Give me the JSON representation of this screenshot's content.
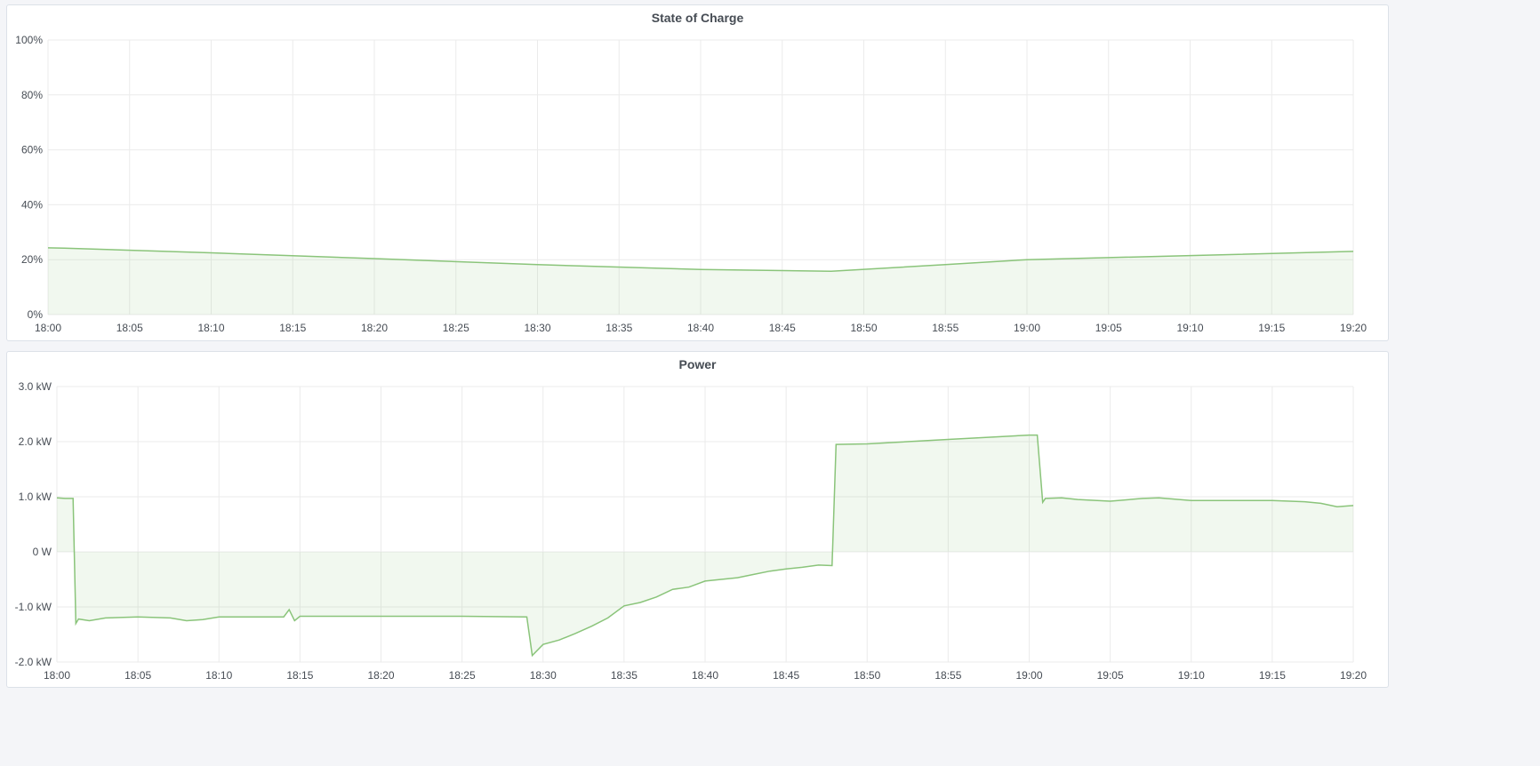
{
  "chart_data": [
    {
      "type": "area",
      "title": "State of Charge",
      "x_ticks": [
        "18:00",
        "18:05",
        "18:10",
        "18:15",
        "18:20",
        "18:25",
        "18:30",
        "18:35",
        "18:40",
        "18:45",
        "18:50",
        "18:55",
        "19:00",
        "19:05",
        "19:10",
        "19:15",
        "19:20"
      ],
      "y_ticks": [
        "0%",
        "20%",
        "40%",
        "60%",
        "80%",
        "100%"
      ],
      "ylim": [
        0,
        100
      ],
      "xlim": [
        "18:00",
        "19:20"
      ],
      "grid": true,
      "color": "#8ac47a",
      "series": [
        {
          "x": [
            "18:00",
            "18:01",
            "18:10",
            "18:20",
            "18:30",
            "18:40",
            "18:48",
            "18:55",
            "19:00",
            "19:10",
            "19:20"
          ],
          "values": [
            24.3,
            24.2,
            22.5,
            20.4,
            18.2,
            16.4,
            15.8,
            18.2,
            20.0,
            21.5,
            23.0
          ]
        }
      ]
    },
    {
      "type": "area",
      "title": "Power",
      "x_ticks": [
        "18:00",
        "18:05",
        "18:10",
        "18:15",
        "18:20",
        "18:25",
        "18:30",
        "18:35",
        "18:40",
        "18:45",
        "18:50",
        "18:55",
        "19:00",
        "19:05",
        "19:10",
        "19:15",
        "19:20"
      ],
      "y_ticks": [
        "-2.0 kW",
        "-1.0 kW",
        "0 W",
        "1.0 kW",
        "2.0 kW",
        "3.0 kW"
      ],
      "ylim": [
        -2.0,
        3.0
      ],
      "yunit": "kW",
      "xlim": [
        "18:00",
        "19:20"
      ],
      "grid": true,
      "color": "#8ac47a",
      "series": [
        {
          "x": [
            "18:00",
            "18:00:30",
            "18:01",
            "18:01:10",
            "18:01:20",
            "18:02",
            "18:03",
            "18:05",
            "18:07",
            "18:08",
            "18:09",
            "18:10",
            "18:12",
            "18:14",
            "18:14:20",
            "18:14:40",
            "18:15",
            "18:20",
            "18:25",
            "18:29",
            "18:29:20",
            "18:30",
            "18:31",
            "18:32",
            "18:33",
            "18:34",
            "18:35",
            "18:36",
            "18:37",
            "18:38",
            "18:39",
            "18:40",
            "18:41",
            "18:42",
            "18:43",
            "18:44",
            "18:45",
            "18:46",
            "18:47",
            "18:47:50",
            "18:48:05",
            "18:50",
            "18:55",
            "19:00",
            "19:00:30",
            "19:00:50",
            "19:01",
            "19:02",
            "19:03",
            "19:05",
            "19:07",
            "19:08",
            "19:10",
            "19:12",
            "19:15",
            "19:17",
            "19:18",
            "19:19",
            "19:20"
          ],
          "values": [
            0.98,
            0.97,
            0.97,
            -1.3,
            -1.22,
            -1.25,
            -1.2,
            -1.18,
            -1.2,
            -1.25,
            -1.23,
            -1.18,
            -1.18,
            -1.18,
            -1.05,
            -1.25,
            -1.17,
            -1.17,
            -1.17,
            -1.18,
            -1.88,
            -1.68,
            -1.6,
            -1.48,
            -1.35,
            -1.2,
            -0.98,
            -0.92,
            -0.82,
            -0.68,
            -0.64,
            -0.53,
            -0.5,
            -0.47,
            -0.41,
            -0.35,
            -0.31,
            -0.28,
            -0.24,
            -0.25,
            1.95,
            1.96,
            2.04,
            2.12,
            2.12,
            0.9,
            0.97,
            0.98,
            0.95,
            0.92,
            0.97,
            0.98,
            0.93,
            0.93,
            0.93,
            0.91,
            0.88,
            0.82,
            0.84
          ]
        }
      ]
    }
  ]
}
